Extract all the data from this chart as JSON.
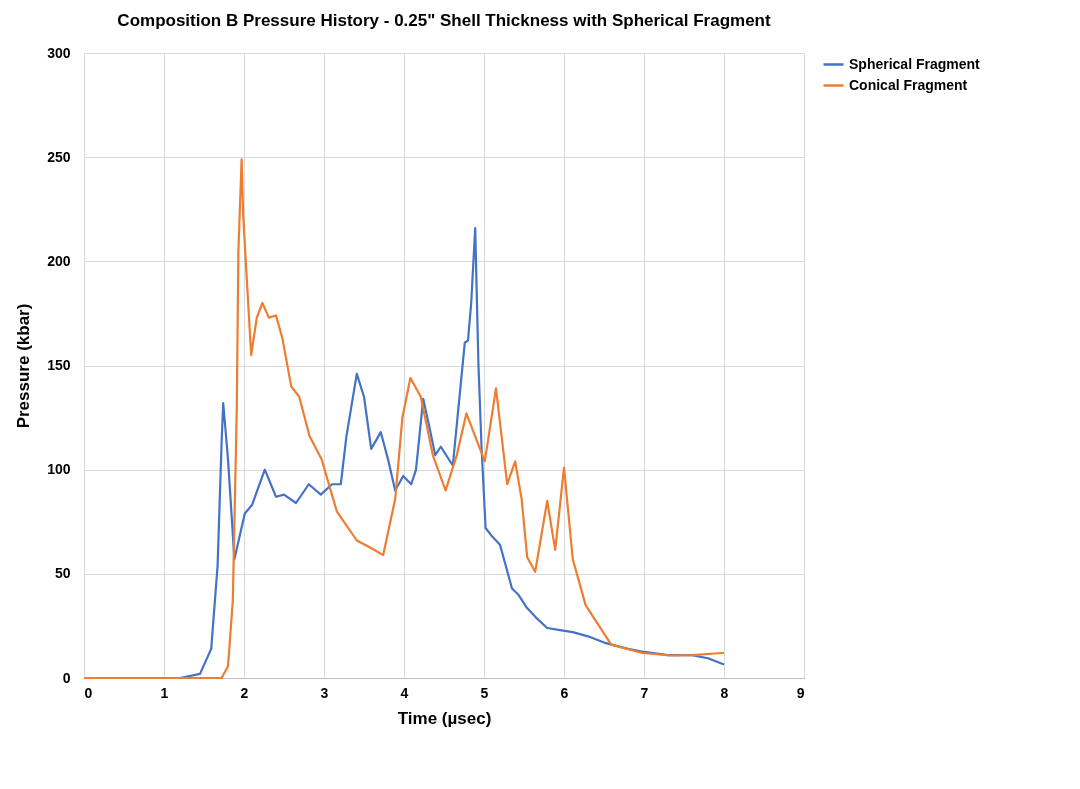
{
  "chart_data": {
    "type": "line",
    "title": "Composition B Pressure History - 0.25\" Shell Thickness with Spherical Fragment",
    "xlabel": "Time (µsec)",
    "ylabel": "Pressure (kbar)",
    "xlim": [
      0,
      9
    ],
    "xticks": [
      0,
      1,
      2,
      3,
      4,
      5,
      6,
      7,
      8,
      9
    ],
    "ylim": [
      0,
      300
    ],
    "yticks": [
      0,
      50,
      100,
      150,
      200,
      250,
      300
    ],
    "grid": true,
    "legend": "right",
    "line_style": "solid",
    "marker": "none",
    "series": [
      {
        "name": "Spherical Fragment",
        "color": "#4472c4",
        "x": [
          0,
          1.2,
          1.45,
          1.59,
          1.67,
          1.72,
          1.74,
          1.8,
          1.88,
          2.01,
          2.1,
          2.26,
          2.4,
          2.5,
          2.65,
          2.81,
          2.96,
          3.1,
          3.21,
          3.28,
          3.41,
          3.5,
          3.59,
          3.71,
          3.8,
          3.89,
          3.99,
          4.09,
          4.15,
          4.24,
          4.32,
          4.39,
          4.46,
          4.61,
          4.76,
          4.8,
          4.84,
          4.89,
          4.93,
          4.97,
          5.02,
          5.1,
          5.2,
          5.35,
          5.43,
          5.53,
          5.65,
          5.79,
          5.95,
          6.11,
          6.3,
          6.5,
          6.8,
          7.0,
          7.3,
          7.6,
          7.8,
          8.0
        ],
        "values": [
          0,
          0,
          2,
          14,
          54,
          113,
          132,
          105,
          57,
          79,
          83,
          100,
          87,
          88,
          84,
          93,
          88,
          93,
          93,
          116,
          146,
          135,
          110,
          118,
          105,
          90,
          97,
          93,
          100,
          134,
          120,
          107,
          111,
          102,
          161,
          162,
          180,
          216,
          151,
          110,
          72,
          68,
          64,
          43,
          40,
          34,
          29,
          24,
          23,
          22,
          20,
          17,
          14,
          12.5,
          11,
          11,
          9.5,
          6.5
        ]
      },
      {
        "name": "Conical Fragment",
        "color": "#ed7d31",
        "x": [
          0,
          1.72,
          1.8,
          1.86,
          1.91,
          1.93,
          1.97,
          1.99,
          2.04,
          2.09,
          2.16,
          2.23,
          2.31,
          2.4,
          2.48,
          2.59,
          2.69,
          2.82,
          2.97,
          3.16,
          3.41,
          3.56,
          3.74,
          3.89,
          3.98,
          4.08,
          4.21,
          4.36,
          4.52,
          4.66,
          4.78,
          4.92,
          5.01,
          5.15,
          5.29,
          5.39,
          5.47,
          5.54,
          5.64,
          5.79,
          5.89,
          6.0,
          6.11,
          6.27,
          6.59,
          6.98,
          7.34,
          7.6,
          7.97,
          8.0
        ],
        "values": [
          0,
          0,
          5.6,
          37,
          130,
          205,
          249,
          222,
          188,
          155,
          173,
          180,
          173,
          174,
          163,
          140,
          135,
          116,
          105,
          80,
          66,
          63,
          59,
          86,
          125,
          144,
          135,
          107,
          90,
          107,
          127,
          113,
          104,
          139,
          93,
          104,
          86,
          58,
          51,
          85,
          61.5,
          101,
          57,
          35,
          16,
          12,
          10.8,
          11,
          12,
          12
        ]
      }
    ]
  }
}
